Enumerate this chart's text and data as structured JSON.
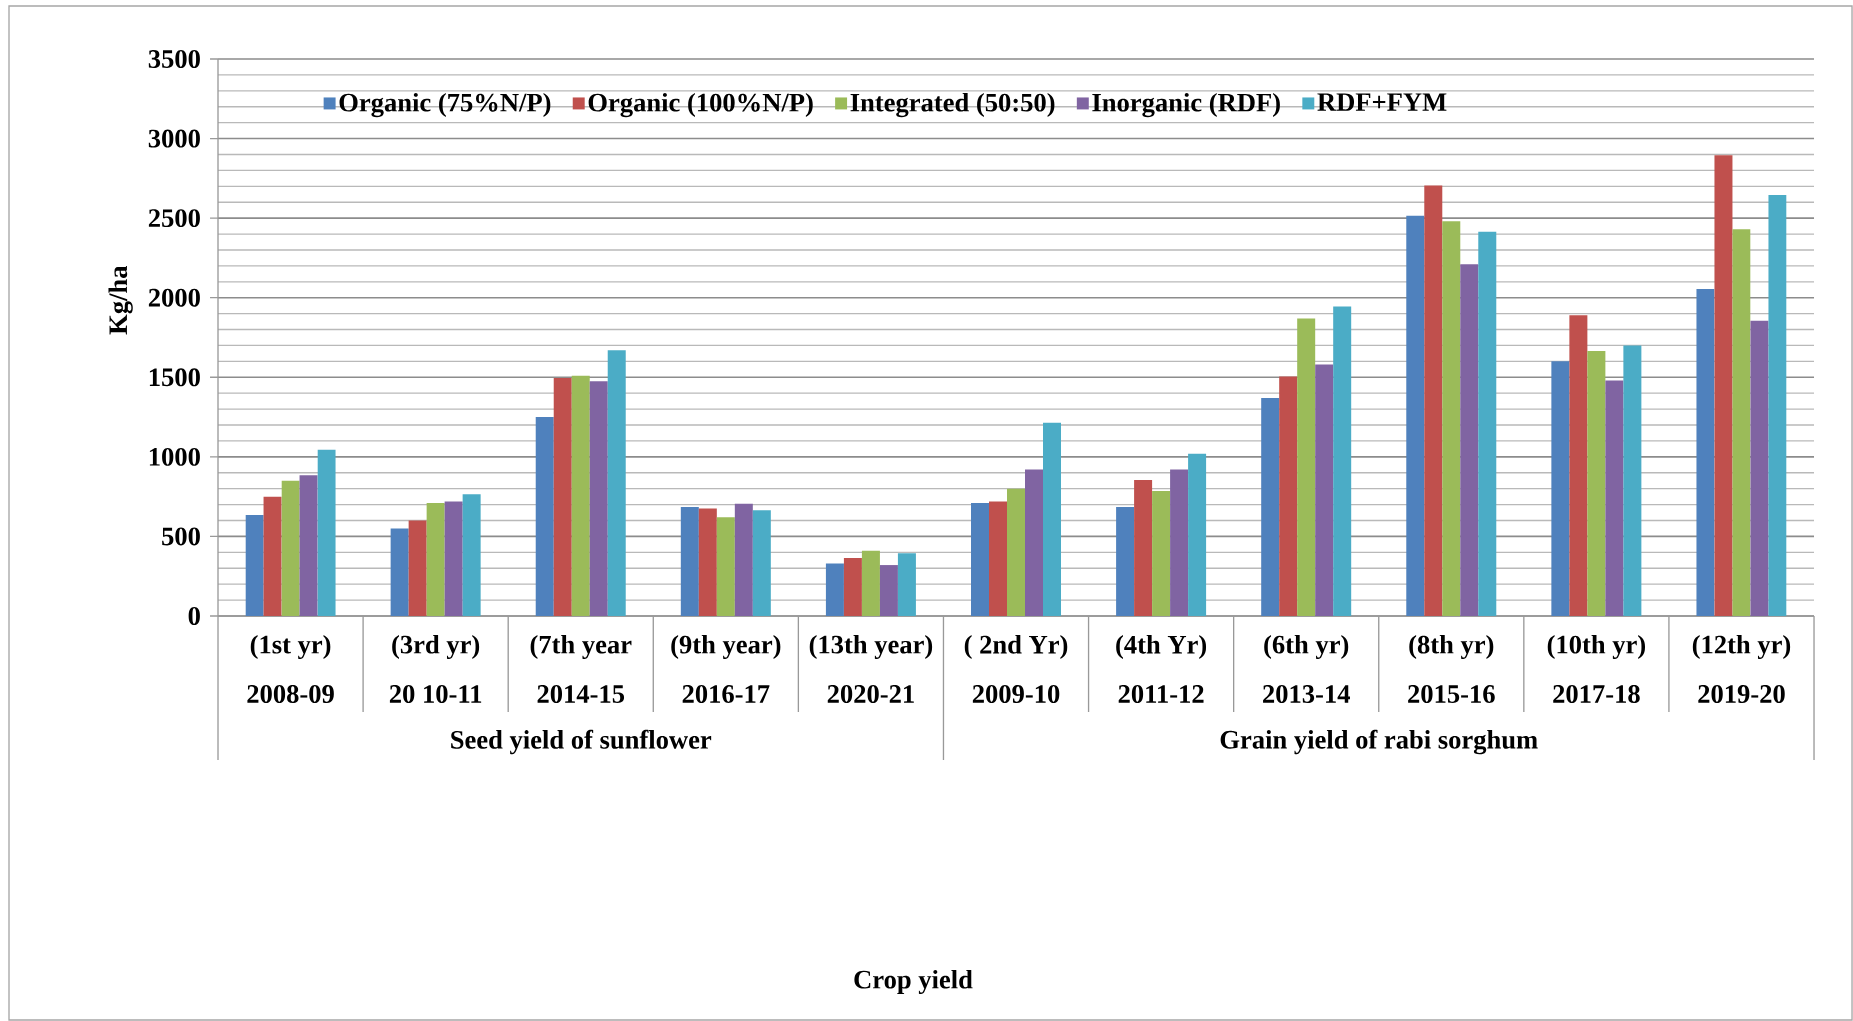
{
  "chart_data": {
    "type": "bar",
    "ylabel": "Kg/ha",
    "categories": [
      "2008-09",
      "20 10-11",
      "2014-15",
      "2016-17",
      "2020-21",
      "2009-10",
      "2011-12",
      "2013-14",
      "2015-16",
      "2017-18",
      "2019-20"
    ],
    "series": [
      {
        "name": "Organic (75%N/P)",
        "color": "#4f81bd",
        "values": [
          635,
          550,
          1250,
          685,
          330,
          710,
          685,
          1370,
          2515,
          1600,
          2055
        ]
      },
      {
        "name": "Organic (100%N/P)",
        "color": "#c0504d",
        "values": [
          750,
          600,
          1495,
          675,
          365,
          720,
          855,
          1505,
          2705,
          1890,
          2895
        ]
      },
      {
        "name": "Integrated (50:50)",
        "color": "#9bbb59",
        "values": [
          850,
          710,
          1510,
          620,
          410,
          800,
          785,
          1870,
          2480,
          1665,
          2430
        ]
      },
      {
        "name": "Inorganic (RDF)",
        "color": "#8064a2",
        "values": [
          885,
          720,
          1475,
          705,
          320,
          920,
          920,
          1580,
          2210,
          1480,
          1855
        ]
      },
      {
        "name": "RDF+FYM",
        "color": "#4bacc6",
        "values": [
          1045,
          765,
          1670,
          665,
          395,
          1215,
          1020,
          1945,
          2415,
          1700,
          2645
        ]
      }
    ],
    "ylim": [
      0,
      3500
    ],
    "yticks": [
      0,
      500,
      1000,
      1500,
      2000,
      2500,
      3000,
      3500
    ],
    "grid": true,
    "legend": "top",
    "annotations": [
      "(1st yr)",
      "(3rd yr)",
      "(7th year",
      "(9th year)",
      "(13th year)",
      "( 2nd Yr)",
      "(4th Yr)",
      "(6th yr)",
      "(8th yr)",
      "(10th yr)",
      "(12th yr)",
      "Seed yield of sunflower",
      "Grain yield of rabi sorghum",
      "Crop yield"
    ]
  }
}
